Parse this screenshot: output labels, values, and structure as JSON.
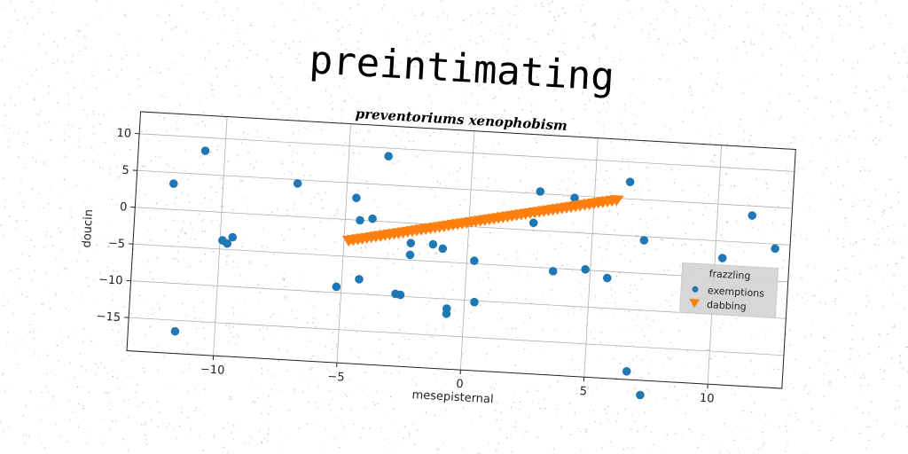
{
  "chart_data": {
    "type": "scatter",
    "title": "preintimating",
    "subtitle": "preventoriums xenophobism",
    "xlabel": "mesepisternal",
    "ylabel": "doucin",
    "xlim": [
      -13.5,
      13.0
    ],
    "ylim": [
      -19.5,
      13.0
    ],
    "xticks": [
      -10,
      -5,
      0,
      5,
      10
    ],
    "yticks": [
      10,
      5,
      0,
      -5,
      -10,
      -15
    ],
    "xtick_labels": [
      "−10",
      "−5",
      "0",
      "5",
      "10"
    ],
    "ytick_labels": [
      "10",
      "5",
      "0",
      "−5",
      "−10",
      "−15"
    ],
    "grid": true,
    "legend": {
      "title": "frazzling",
      "placement": "right"
    },
    "series": [
      {
        "name": "exemptions",
        "marker": "circle",
        "color": "#1f77b4",
        "points": [
          [
            -12.0,
            3.5
          ],
          [
            -10.8,
            8.2
          ],
          [
            -11.6,
            -16.5
          ],
          [
            -9.9,
            -3.8
          ],
          [
            -9.7,
            -4.2
          ],
          [
            -9.5,
            -3.3
          ],
          [
            -7.0,
            4.5
          ],
          [
            -5.2,
            -9.2
          ],
          [
            -4.6,
            3.0
          ],
          [
            -4.4,
            0.0
          ],
          [
            -4.3,
            -8.0
          ],
          [
            -3.9,
            0.3
          ],
          [
            -3.4,
            8.9
          ],
          [
            -2.8,
            -9.7
          ],
          [
            -2.6,
            -9.8
          ],
          [
            -2.3,
            -2.7
          ],
          [
            -2.3,
            -4.3
          ],
          [
            -1.4,
            -2.7
          ],
          [
            -1.0,
            -3.2
          ],
          [
            -0.7,
            -11.3
          ],
          [
            -0.7,
            -12.0
          ],
          [
            0.3,
            -4.6
          ],
          [
            0.4,
            -10.2
          ],
          [
            2.6,
            1.0
          ],
          [
            2.8,
            5.3
          ],
          [
            3.5,
            -5.4
          ],
          [
            4.2,
            4.7
          ],
          [
            4.8,
            -4.9
          ],
          [
            5.7,
            -5.9
          ],
          [
            6.4,
            7.3
          ],
          [
            7.1,
            -0.5
          ],
          [
            6.7,
            -18.4
          ],
          [
            7.3,
            -21.5
          ],
          [
            10.3,
            -2.3
          ],
          [
            11.4,
            3.7
          ],
          [
            12.4,
            -0.6
          ]
        ]
      },
      {
        "name": "dabbing",
        "marker": "triangle-down",
        "color": "#ff7f0e",
        "line": {
          "x_start": -4.8,
          "x_end": 5.9,
          "y_start": -2.8,
          "y_end": 4.8,
          "count": 60
        }
      }
    ]
  }
}
